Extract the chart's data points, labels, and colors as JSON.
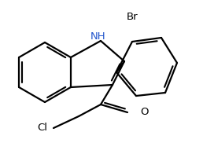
{
  "background_color": "#ffffff",
  "line_color": "#000000",
  "line_width": 1.6,
  "figsize": [
    2.58,
    1.82
  ],
  "dpi": 100,
  "xlim": [
    0,
    258
  ],
  "ylim": [
    0,
    182
  ]
}
